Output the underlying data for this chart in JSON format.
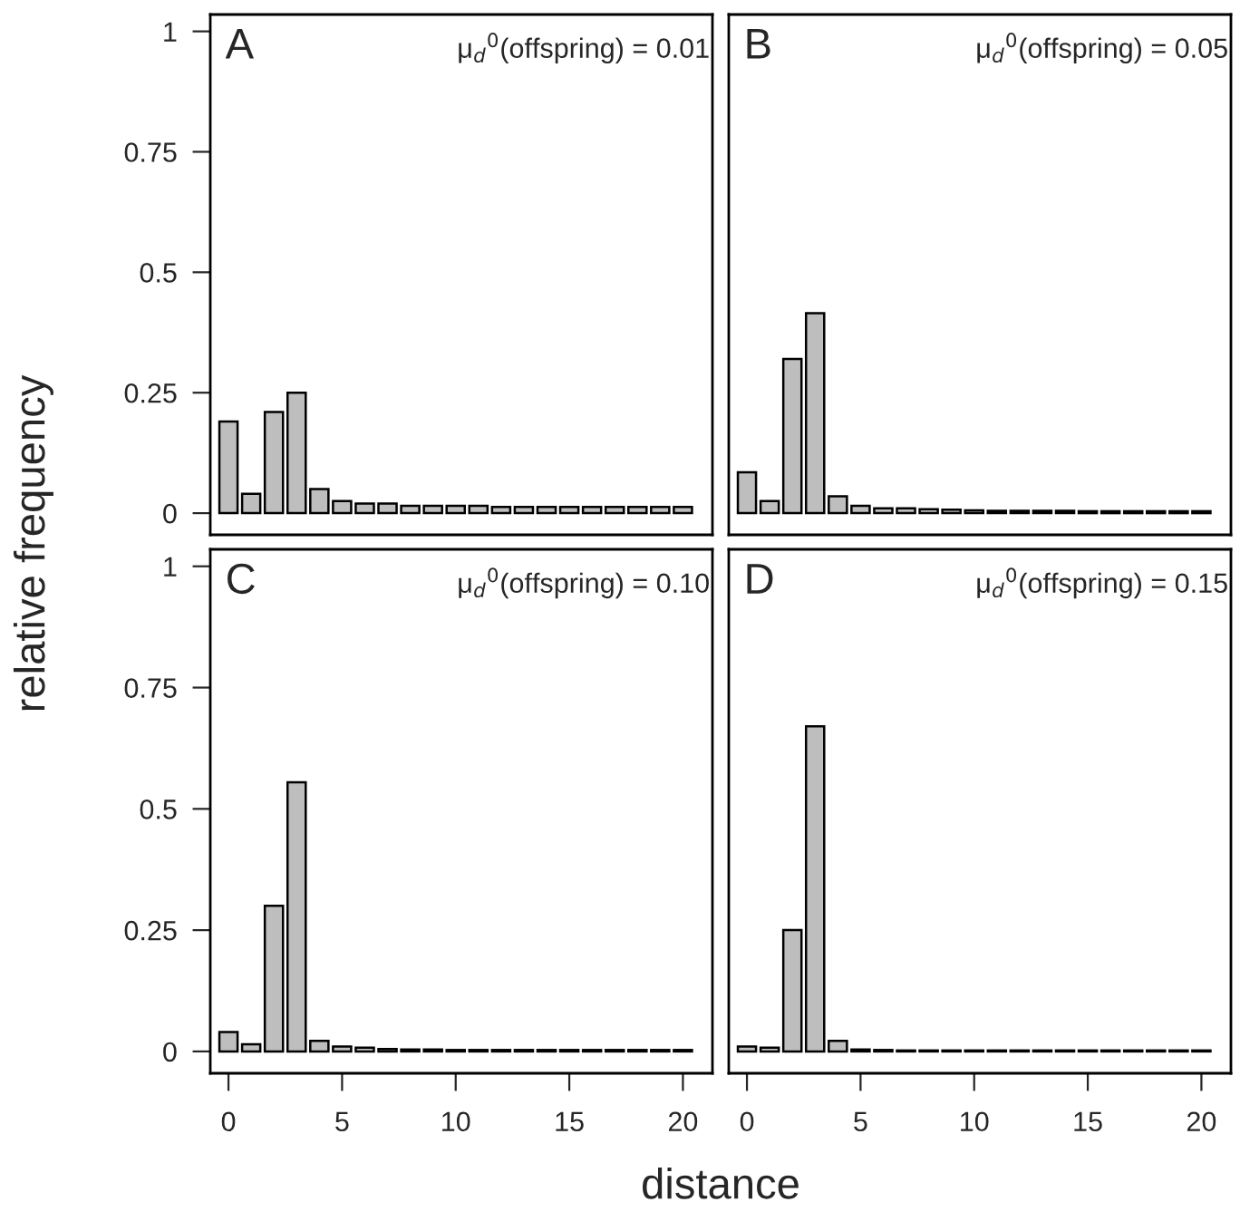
{
  "chart_data": [
    {
      "type": "bar",
      "ylabel": "relative frequency",
      "annotations": [
        "A",
        "μ$_{d}$$^{0}$(offspring) = 0.01"
      ],
      "x": [
        0,
        1,
        2,
        3,
        4,
        5,
        6,
        7,
        8,
        9,
        10,
        11,
        12,
        13,
        14,
        15,
        16,
        17,
        18,
        19,
        20
      ],
      "color": "#bebebe",
      "values": [
        0.19,
        0.04,
        0.21,
        0.25,
        0.05,
        0.025,
        0.02,
        0.02,
        0.015,
        0.015,
        0.015,
        0.015,
        0.013,
        0.013,
        0.013,
        0.013,
        0.013,
        0.013,
        0.013,
        0.013,
        0.013
      ],
      "xlim": [
        -0.8,
        21.3
      ],
      "ylim": [
        -0.045,
        1.035
      ],
      "xticks": [
        0,
        5,
        10,
        15,
        20
      ],
      "yticks": [
        0,
        0.25,
        0.5,
        0.75,
        1
      ],
      "tick_labels": "y"
    },
    {
      "type": "bar",
      "annotations": [
        "B",
        "μ$_{d}$$^{0}$(offspring) = 0.05"
      ],
      "x": [
        0,
        1,
        2,
        3,
        4,
        5,
        6,
        7,
        8,
        9,
        10,
        11,
        12,
        13,
        14,
        15,
        16,
        17,
        18,
        19,
        20
      ],
      "color": "#bebebe",
      "values": [
        0.085,
        0.025,
        0.32,
        0.415,
        0.035,
        0.015,
        0.01,
        0.01,
        0.008,
        0.007,
        0.006,
        0.005,
        0.005,
        0.005,
        0.005,
        0.004,
        0.004,
        0.004,
        0.004,
        0.004,
        0.004
      ],
      "xlim": [
        -0.8,
        21.3
      ],
      "ylim": [
        -0.045,
        1.035
      ],
      "xticks": [
        0,
        5,
        10,
        15,
        20
      ],
      "yticks": [
        0,
        0.25,
        0.5,
        0.75,
        1
      ],
      "tick_labels": false
    },
    {
      "type": "bar",
      "xlabel": "distance",
      "annotations": [
        "C",
        "μ$_{d}$$^{0}$(offspring) = 0.10"
      ],
      "x": [
        0,
        1,
        2,
        3,
        4,
        5,
        6,
        7,
        8,
        9,
        10,
        11,
        12,
        13,
        14,
        15,
        16,
        17,
        18,
        19,
        20
      ],
      "color": "#bebebe",
      "values": [
        0.04,
        0.015,
        0.3,
        0.555,
        0.022,
        0.01,
        0.008,
        0.005,
        0.004,
        0.004,
        0.003,
        0.003,
        0.003,
        0.003,
        0.003,
        0.003,
        0.003,
        0.003,
        0.003,
        0.003,
        0.003
      ],
      "xlim": [
        -0.8,
        21.3
      ],
      "ylim": [
        -0.045,
        1.035
      ],
      "xticks": [
        0,
        5,
        10,
        15,
        20
      ],
      "yticks": [
        0,
        0.25,
        0.5,
        0.75,
        1
      ]
    },
    {
      "type": "bar",
      "annotations": [
        "D",
        "μ$_{d}$$^{0}$(offspring) = 0.15"
      ],
      "x": [
        0,
        1,
        2,
        3,
        4,
        5,
        6,
        7,
        8,
        9,
        10,
        11,
        12,
        13,
        14,
        15,
        16,
        17,
        18,
        19,
        20
      ],
      "color": "#bebebe",
      "values": [
        0.01,
        0.008,
        0.25,
        0.67,
        0.022,
        0.004,
        0.003,
        0.002,
        0.002,
        0.002,
        0.002,
        0.002,
        0.002,
        0.002,
        0.002,
        0.002,
        0.002,
        0.002,
        0.002,
        0.002,
        0.002
      ],
      "xlim": [
        -0.8,
        21.3
      ],
      "ylim": [
        -0.045,
        1.035
      ],
      "xticks": [
        0,
        5,
        10,
        15,
        20
      ],
      "yticks": [
        0,
        0.25,
        0.5,
        0.75,
        1
      ],
      "tick_labels": "x"
    }
  ]
}
